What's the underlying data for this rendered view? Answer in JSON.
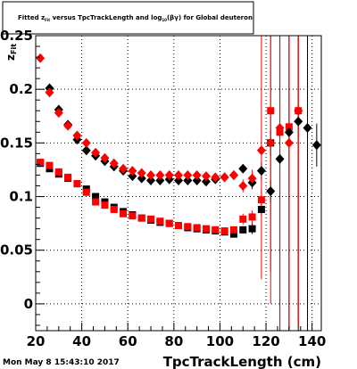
{
  "title": {
    "part1": "Fitted  z",
    "sub1": "Fit",
    "part2": "  versus  TpcTrackLength and log",
    "sub2": "10",
    "part3": "(βγ) for Global deuteron"
  },
  "ylabel_main": "z",
  "ylabel_sub": "Fit",
  "timestamp": "Mon May  8 15:43:10 2017",
  "chart_data": {
    "type": "scatter",
    "xlabel": "TpcTrackLength (cm)",
    "xlim": [
      20,
      144
    ],
    "ylim": [
      -0.025,
      0.25
    ],
    "xticks": [
      {
        "value": 20,
        "label": "20"
      },
      {
        "value": 40,
        "label": "40"
      },
      {
        "value": 60,
        "label": "60"
      },
      {
        "value": 80,
        "label": "80"
      },
      {
        "value": 100,
        "label": "100"
      },
      {
        "value": 120,
        "label": "120"
      },
      {
        "value": 140,
        "label": "140"
      }
    ],
    "yticks": [
      {
        "value": 0,
        "label": "0"
      },
      {
        "value": 0.05,
        "label": "0.05"
      },
      {
        "value": 0.1,
        "label": "0.1"
      },
      {
        "value": 0.15,
        "label": "0.15"
      },
      {
        "value": 0.2,
        "label": "0.2"
      },
      {
        "value": 0.25,
        "label": "0.25"
      }
    ],
    "grid": true,
    "series": [
      {
        "marker": "square",
        "color": "#000000",
        "x": [
          22,
          26,
          30,
          34,
          38,
          42,
          46,
          50,
          54,
          58,
          62,
          66,
          70,
          74,
          78,
          82,
          86,
          90,
          94,
          98,
          102,
          106,
          110,
          114,
          118,
          122
        ],
        "y": [
          0.131,
          0.126,
          0.121,
          0.117,
          0.112,
          0.107,
          0.1,
          0.095,
          0.09,
          0.086,
          0.083,
          0.08,
          0.078,
          0.076,
          0.075,
          0.073,
          0.071,
          0.07,
          0.069,
          0.068,
          0.067,
          0.065,
          0.069,
          0.07,
          0.088,
          0.15
        ],
        "err": [
          0.0015,
          0.0015,
          0.0015,
          0.0015,
          0.0015,
          0.0015,
          0.0015,
          0.0015,
          0.0015,
          0.0015,
          0.0015,
          0.0015,
          0.0015,
          0.0015,
          0.0015,
          0.0015,
          0.0015,
          0.0015,
          0.0015,
          0.0015,
          0.0025,
          0.003,
          0.004,
          0.005,
          0.006,
          0.012
        ]
      },
      {
        "marker": "square",
        "color": "#ff0000",
        "x": [
          22,
          26,
          30,
          34,
          38,
          42,
          46,
          50,
          54,
          58,
          62,
          66,
          70,
          74,
          78,
          82,
          86,
          90,
          94,
          98,
          102,
          106,
          110,
          114,
          118,
          122,
          126,
          130,
          134
        ],
        "y": [
          0.132,
          0.129,
          0.123,
          0.118,
          0.112,
          0.104,
          0.095,
          0.092,
          0.088,
          0.084,
          0.082,
          0.08,
          0.079,
          0.077,
          0.075,
          0.073,
          0.072,
          0.071,
          0.07,
          0.069,
          0.068,
          0.069,
          0.079,
          0.081,
          0.097,
          0.18,
          0.16,
          0.165,
          0.18
        ],
        "err": [
          0.0015,
          0.0015,
          0.0015,
          0.0015,
          0.0015,
          0.0015,
          0.0015,
          0.0015,
          0.0015,
          0.0015,
          0.0015,
          0.0015,
          0.0015,
          0.0015,
          0.0015,
          0.0015,
          0.0015,
          0.0015,
          0.0015,
          0.0015,
          0.002,
          0.003,
          0.005,
          0.006,
          0.01,
          0.18,
          0.2,
          0.2,
          0.2
        ]
      },
      {
        "marker": "diamond",
        "color": "#000000",
        "x": [
          26,
          30,
          34,
          38,
          42,
          46,
          50,
          54,
          58,
          62,
          66,
          70,
          74,
          78,
          82,
          86,
          90,
          94,
          98,
          102,
          106,
          110,
          114,
          118,
          122,
          126,
          130,
          134,
          138,
          142
        ],
        "y": [
          0.201,
          0.181,
          0.167,
          0.153,
          0.143,
          0.138,
          0.133,
          0.128,
          0.124,
          0.119,
          0.117,
          0.115,
          0.115,
          0.116,
          0.115,
          0.115,
          0.115,
          0.114,
          0.116,
          0.118,
          0.12,
          0.126,
          0.113,
          0.124,
          0.105,
          0.135,
          0.16,
          0.17,
          0.164,
          0.148
        ],
        "err": [
          0.002,
          0.002,
          0.002,
          0.002,
          0.002,
          0.002,
          0.002,
          0.002,
          0.002,
          0.002,
          0.002,
          0.002,
          0.002,
          0.002,
          0.002,
          0.002,
          0.002,
          0.002,
          0.002,
          0.002,
          0.003,
          0.004,
          0.006,
          0.008,
          0.01,
          0.18,
          0.2,
          0.2,
          0.2,
          0.02
        ]
      },
      {
        "marker": "diamond",
        "color": "#ff0000",
        "x": [
          22,
          26,
          30,
          34,
          38,
          42,
          46,
          50,
          54,
          58,
          62,
          66,
          70,
          74,
          78,
          82,
          86,
          90,
          94,
          98,
          102,
          106,
          110,
          114,
          118,
          122,
          126,
          130,
          134
        ],
        "y": [
          0.229,
          0.197,
          0.178,
          0.166,
          0.157,
          0.15,
          0.141,
          0.136,
          0.131,
          0.126,
          0.124,
          0.122,
          0.12,
          0.12,
          0.12,
          0.12,
          0.12,
          0.12,
          0.119,
          0.118,
          0.118,
          0.12,
          0.11,
          0.117,
          0.143,
          0.15,
          0.164,
          0.15,
          0.18
        ],
        "err": [
          0.002,
          0.002,
          0.002,
          0.002,
          0.002,
          0.002,
          0.002,
          0.002,
          0.002,
          0.002,
          0.002,
          0.002,
          0.002,
          0.002,
          0.002,
          0.002,
          0.002,
          0.002,
          0.002,
          0.002,
          0.003,
          0.004,
          0.006,
          0.008,
          0.12,
          0.12,
          0.2,
          0.2,
          0.2
        ]
      }
    ]
  }
}
